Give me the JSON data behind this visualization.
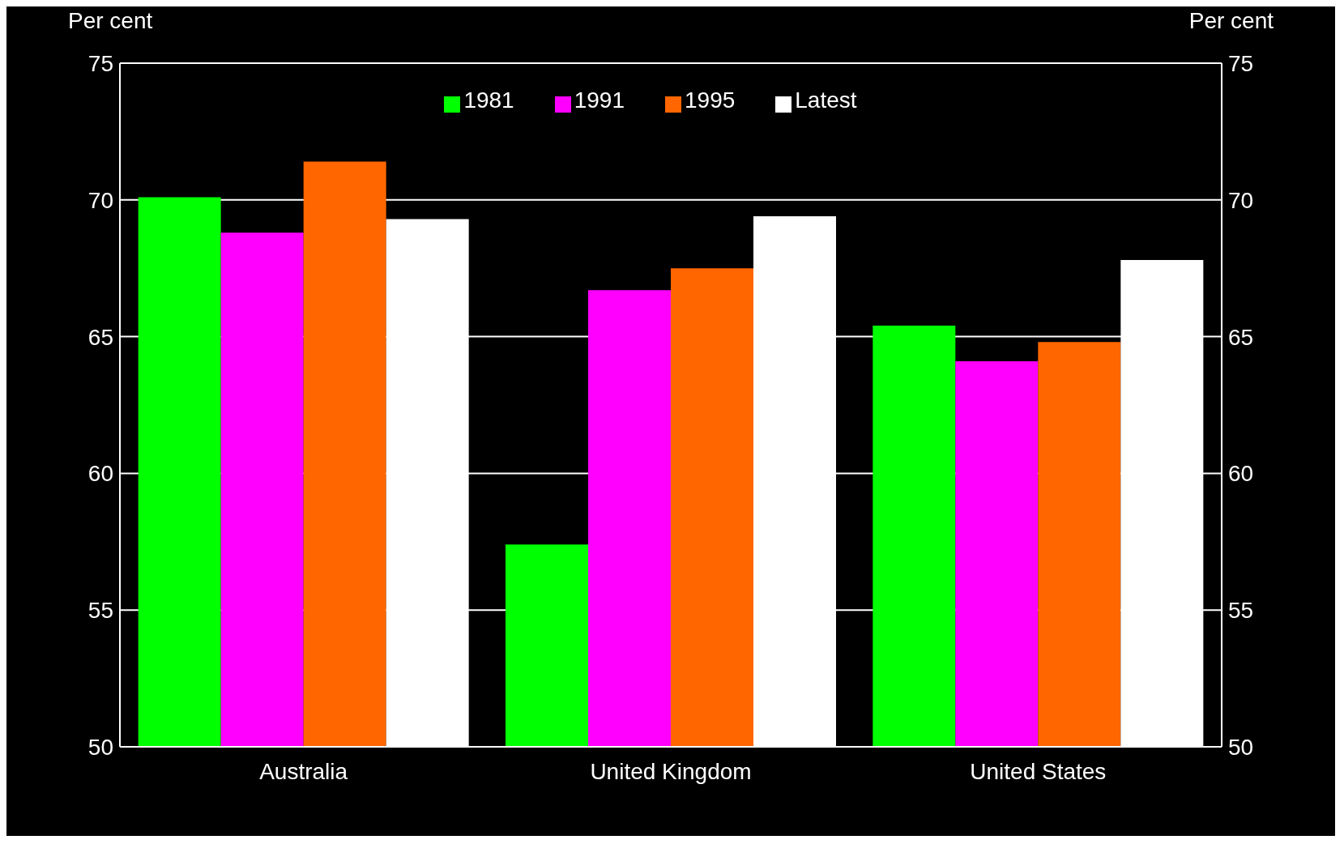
{
  "chart_data": {
    "type": "bar",
    "ylabel": "Per cent",
    "y2label": "Per cent",
    "categories": [
      "Australia",
      "United Kingdom",
      "United States"
    ],
    "series": [
      {
        "name": "1981",
        "color": "#00ff00",
        "values": [
          70.1,
          57.4,
          65.4
        ]
      },
      {
        "name": "1991",
        "color": "#ff00ff",
        "values": [
          68.8,
          66.7,
          64.1
        ]
      },
      {
        "name": "1995",
        "color": "#ff6600",
        "values": [
          71.4,
          67.5,
          64.8
        ]
      },
      {
        "name": "Latest",
        "color": "#ffffff",
        "values": [
          69.3,
          69.4,
          67.8
        ]
      }
    ],
    "ylim": [
      50,
      75
    ],
    "yticks": [
      50,
      55,
      60,
      65,
      70,
      75
    ],
    "y2lim": [
      50,
      75
    ],
    "y2ticks": [
      50,
      55,
      60,
      65,
      70,
      75
    ],
    "grid": "y",
    "legend": "top"
  }
}
